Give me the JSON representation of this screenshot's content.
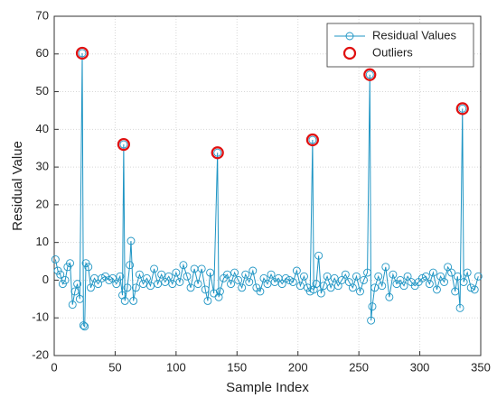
{
  "chart_data": {
    "type": "line",
    "xlabel": "Sample Index",
    "ylabel": "Residual Value",
    "xlim": [
      0,
      350
    ],
    "ylim": [
      -20,
      70
    ],
    "xticks": [
      0,
      50,
      100,
      150,
      200,
      250,
      300,
      350
    ],
    "yticks": [
      -20,
      -10,
      0,
      10,
      20,
      30,
      40,
      50,
      60,
      70
    ],
    "grid": true,
    "legend": "top-right",
    "series": [
      {
        "name": "Residual Values",
        "color": "#1f95c4",
        "style": "line-markers",
        "x": [
          1,
          3,
          5,
          7,
          9,
          11,
          13,
          15,
          17,
          19,
          21,
          23,
          24,
          25,
          26,
          28,
          30,
          33,
          36,
          39,
          42,
          45,
          48,
          51,
          54,
          56,
          57,
          58,
          60,
          62,
          63,
          65,
          67,
          70,
          73,
          76,
          79,
          82,
          85,
          88,
          91,
          94,
          97,
          100,
          103,
          106,
          109,
          112,
          115,
          118,
          121,
          124,
          126,
          128,
          131,
          134,
          135,
          136,
          139,
          142,
          145,
          148,
          151,
          154,
          157,
          160,
          163,
          166,
          169,
          172,
          175,
          178,
          181,
          184,
          187,
          190,
          193,
          196,
          199,
          202,
          205,
          208,
          210,
          212,
          213,
          215,
          217,
          219,
          221,
          224,
          227,
          230,
          233,
          236,
          239,
          242,
          245,
          248,
          251,
          254,
          257,
          259,
          260,
          261,
          263,
          266,
          269,
          272,
          275,
          278,
          281,
          284,
          287,
          290,
          293,
          296,
          299,
          302,
          305,
          308,
          311,
          314,
          317,
          320,
          323,
          326,
          329,
          331,
          333,
          335,
          336,
          339,
          342,
          345,
          348
        ],
        "values": [
          5.5,
          2.5,
          1.5,
          -1,
          0,
          3.5,
          4.5,
          -6.5,
          -3,
          -1,
          -5,
          60.2,
          -12,
          -12.3,
          4.5,
          3.5,
          -2,
          0.5,
          -1,
          0.5,
          1,
          0,
          0.5,
          -1,
          1,
          -4,
          36,
          -5.5,
          -2,
          4,
          10.4,
          -5.5,
          -2,
          1.5,
          -1,
          0.5,
          -1.5,
          3,
          -1,
          1.5,
          -0.5,
          1,
          -1,
          2,
          -0.5,
          4,
          1,
          -2,
          3,
          -1,
          3,
          -2.5,
          -5.5,
          2,
          -3.5,
          33.8,
          -4.5,
          -3,
          0.5,
          1.5,
          -1,
          2,
          0,
          -2,
          1.5,
          -0.5,
          2.5,
          -2,
          -3,
          0.5,
          -1,
          1.5,
          -0.5,
          0.5,
          -1,
          0.5,
          0,
          -0.5,
          2.5,
          -1.5,
          1,
          -2,
          -3,
          37.2,
          -2.5,
          -1,
          6.5,
          -3.5,
          -1.5,
          1,
          -2,
          0.5,
          -1.5,
          0,
          1.5,
          -0.5,
          -2,
          1,
          -3,
          0,
          2,
          54.5,
          -10.7,
          -7,
          -2,
          1,
          -1.5,
          3.5,
          -4.5,
          1.5,
          -1,
          0,
          -1.5,
          1,
          -0.5,
          -1.5,
          -0.5,
          0.5,
          1,
          -1,
          2,
          -2.5,
          1,
          -0.5,
          3.5,
          2,
          -3,
          1,
          -7.4,
          45.5,
          -0.5,
          2,
          -2,
          -2.5,
          1
        ]
      },
      {
        "name": "Outliers",
        "color": "#e01010",
        "style": "markers",
        "x": [
          23,
          57,
          134,
          212,
          259,
          335
        ],
        "values": [
          60.2,
          36,
          33.8,
          37.2,
          54.5,
          45.5
        ]
      }
    ]
  }
}
